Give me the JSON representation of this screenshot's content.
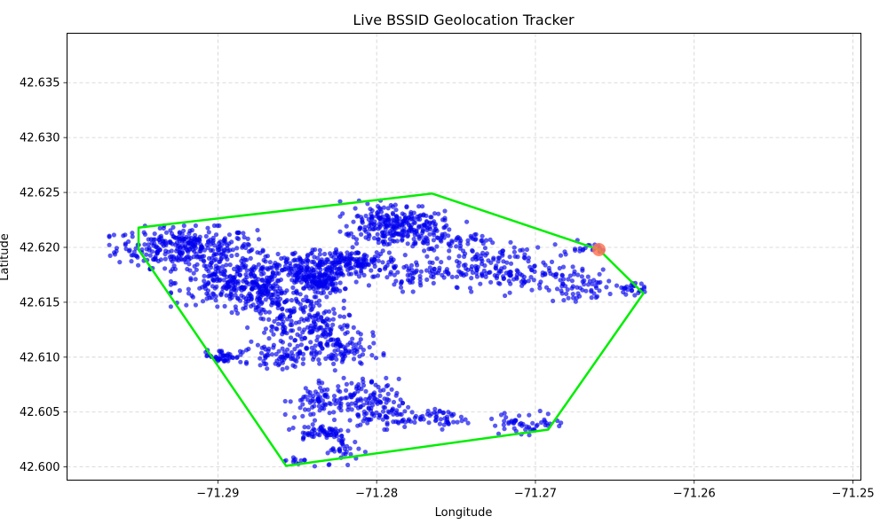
{
  "chart_data": {
    "type": "scatter",
    "title": "Live BSSID Geolocation Tracker",
    "xlabel": "Longitude",
    "ylabel": "Latitude",
    "xlim": [
      -71.2995,
      -71.2495
    ],
    "ylim": [
      42.5988,
      42.6395
    ],
    "xticks": [
      -71.29,
      -71.28,
      -71.27,
      -71.26,
      -71.25
    ],
    "xtick_labels": [
      "−71.29",
      "−71.28",
      "−71.27",
      "−71.26",
      "−71.25"
    ],
    "yticks": [
      42.6,
      42.605,
      42.61,
      42.615,
      42.62,
      42.625,
      42.63,
      42.635
    ],
    "ytick_labels": [
      "42.600",
      "42.605",
      "42.610",
      "42.615",
      "42.620",
      "42.625",
      "42.630",
      "42.635"
    ],
    "grid": true,
    "point_color": "#0000ee",
    "hull_color": "#00ee00",
    "current_color": "#ff7755",
    "hull": [
      [
        -71.295,
        42.6218
      ],
      [
        -71.2765,
        42.6249
      ],
      [
        -71.266,
        42.6198
      ],
      [
        -71.2632,
        42.6158
      ],
      [
        -71.2692,
        42.6034
      ],
      [
        -71.2857,
        42.6001
      ],
      [
        -71.295,
        42.6198
      ]
    ],
    "current_position": [
      -71.266,
      42.6198
    ],
    "clusters": [
      {
        "x": -71.292,
        "y": 42.62,
        "sx": 0.0022,
        "sy": 0.0009,
        "n": 320
      },
      {
        "x": -71.289,
        "y": 42.6168,
        "sx": 0.0018,
        "sy": 0.001,
        "n": 220
      },
      {
        "x": -71.287,
        "y": 42.6155,
        "sx": 0.0015,
        "sy": 0.0009,
        "n": 120
      },
      {
        "x": -71.285,
        "y": 42.618,
        "sx": 0.0015,
        "sy": 0.0008,
        "n": 160
      },
      {
        "x": -71.2835,
        "y": 42.6168,
        "sx": 0.0007,
        "sy": 0.0006,
        "n": 120
      },
      {
        "x": -71.2815,
        "y": 42.6187,
        "sx": 0.0015,
        "sy": 0.0005,
        "n": 140
      },
      {
        "x": -71.2855,
        "y": 42.613,
        "sx": 0.0012,
        "sy": 0.0013,
        "n": 110
      },
      {
        "x": -71.2832,
        "y": 42.6125,
        "sx": 0.001,
        "sy": 0.0012,
        "n": 90
      },
      {
        "x": -71.2822,
        "y": 42.6105,
        "sx": 0.0012,
        "sy": 0.0008,
        "n": 80
      },
      {
        "x": -71.286,
        "y": 42.61,
        "sx": 0.001,
        "sy": 0.0005,
        "n": 60
      },
      {
        "x": -71.2897,
        "y": 42.6101,
        "sx": 0.0006,
        "sy": 0.0003,
        "n": 45
      },
      {
        "x": -71.284,
        "y": 42.606,
        "sx": 0.0008,
        "sy": 0.0008,
        "n": 60
      },
      {
        "x": -71.281,
        "y": 42.6062,
        "sx": 0.0012,
        "sy": 0.0009,
        "n": 110
      },
      {
        "x": -71.279,
        "y": 42.6045,
        "sx": 0.001,
        "sy": 0.0005,
        "n": 60
      },
      {
        "x": -71.2835,
        "y": 42.6032,
        "sx": 0.001,
        "sy": 0.0004,
        "n": 60
      },
      {
        "x": -71.282,
        "y": 42.6015,
        "sx": 0.0006,
        "sy": 0.0006,
        "n": 30
      },
      {
        "x": -71.285,
        "y": 42.6005,
        "sx": 0.0005,
        "sy": 0.0002,
        "n": 12
      },
      {
        "x": -71.279,
        "y": 42.6225,
        "sx": 0.0015,
        "sy": 0.0008,
        "n": 180
      },
      {
        "x": -71.2775,
        "y": 42.621,
        "sx": 0.002,
        "sy": 0.0006,
        "n": 140
      },
      {
        "x": -71.278,
        "y": 42.6175,
        "sx": 0.0018,
        "sy": 0.0007,
        "n": 80
      },
      {
        "x": -71.276,
        "y": 42.6045,
        "sx": 0.0008,
        "sy": 0.0005,
        "n": 40
      },
      {
        "x": -71.2735,
        "y": 42.6185,
        "sx": 0.0018,
        "sy": 0.001,
        "n": 90
      },
      {
        "x": -71.271,
        "y": 42.6178,
        "sx": 0.0018,
        "sy": 0.001,
        "n": 90
      },
      {
        "x": -71.2705,
        "y": 42.604,
        "sx": 0.0012,
        "sy": 0.0005,
        "n": 50
      },
      {
        "x": -71.267,
        "y": 42.6165,
        "sx": 0.0012,
        "sy": 0.0008,
        "n": 60
      },
      {
        "x": -71.264,
        "y": 42.6163,
        "sx": 0.0004,
        "sy": 0.0003,
        "n": 25
      },
      {
        "x": -71.267,
        "y": 42.62,
        "sx": 0.0008,
        "sy": 0.0003,
        "n": 20
      }
    ]
  }
}
